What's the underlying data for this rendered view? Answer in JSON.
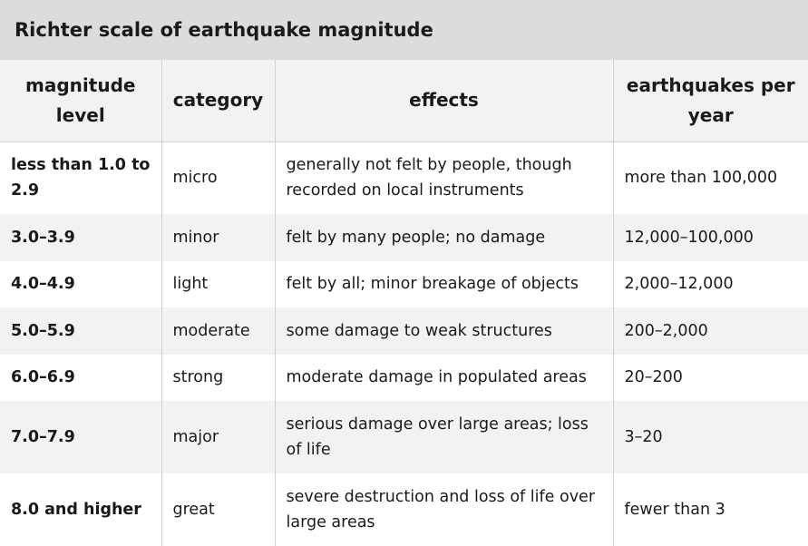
{
  "table": {
    "caption": "Richter scale of earthquake magnitude",
    "headers": [
      "magnitude level",
      "category",
      "effects",
      "earthquakes per year"
    ],
    "rows": [
      {
        "magnitude": "less than 1.0 to 2.9",
        "category": "micro",
        "effects": "generally not felt by people, though recorded on local instruments",
        "per_year": "more than 100,000"
      },
      {
        "magnitude": "3.0–3.9",
        "category": "minor",
        "effects": "felt by many people; no damage",
        "per_year": "12,000–100,000"
      },
      {
        "magnitude": "4.0–4.9",
        "category": "light",
        "effects": "felt by all; minor breakage of objects",
        "per_year": "2,000–12,000"
      },
      {
        "magnitude": "5.0–5.9",
        "category": "moderate",
        "effects": "some damage to weak structures",
        "per_year": "200–2,000"
      },
      {
        "magnitude": "6.0–6.9",
        "category": "strong",
        "effects": "moderate damage in populated areas",
        "per_year": "20–200"
      },
      {
        "magnitude": "7.0–7.9",
        "category": "major",
        "effects": "serious damage over large areas; loss of life",
        "per_year": "3–20"
      },
      {
        "magnitude": "8.0 and higher",
        "category": "great",
        "effects": "severe destruction and loss of life over large areas",
        "per_year": "fewer than 3"
      }
    ]
  },
  "colors": {
    "caption_bg": "#dcdcdc",
    "header_bg": "#f2f2f2",
    "stripe_bg": "#f2f2f2",
    "row_bg": "#ffffff",
    "border": "#d0d0d0"
  }
}
